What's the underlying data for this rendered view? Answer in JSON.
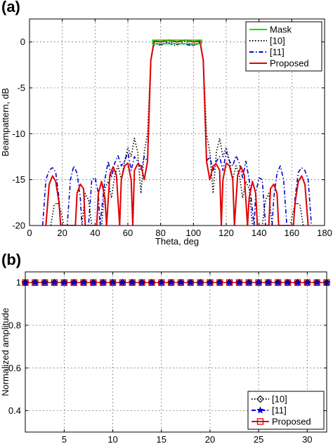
{
  "chart_data": [
    {
      "panel_label": "(a)",
      "type": "line",
      "xlabel": "Theta, deg",
      "ylabel": "Beampattern, dB",
      "xlim": [
        0,
        180
      ],
      "ylim": [
        -20,
        2.5
      ],
      "xticks": [
        0,
        20,
        40,
        60,
        80,
        100,
        120,
        140,
        160,
        180
      ],
      "yticks": [
        0,
        -5,
        -10,
        -15,
        -20
      ],
      "grid": true,
      "legend_position": "top-right",
      "series": [
        {
          "name": "Mask",
          "color": "#00e000",
          "style": "solid",
          "points": [
            [
              75,
              0.2
            ],
            [
              105,
              0.2
            ],
            [
              105,
              -0.2
            ],
            [
              75,
              -0.2
            ],
            [
              75,
              0.2
            ]
          ]
        },
        {
          "name": "[10]",
          "color": "#000000",
          "style": "dotted",
          "points": [
            [
              13,
              -20
            ],
            [
              15,
              -17.8
            ],
            [
              17,
              -17.5
            ],
            [
              19,
              -18.3
            ],
            [
              21,
              -20
            ],
            [
              32,
              -20
            ],
            [
              34,
              -16.5
            ],
            [
              36,
              -17.2
            ],
            [
              38,
              -20
            ],
            [
              44,
              -20
            ],
            [
              46,
              -16
            ],
            [
              48,
              -15.2
            ],
            [
              50,
              -17
            ],
            [
              52,
              -14.5
            ],
            [
              54,
              -13.5
            ],
            [
              56,
              -15
            ],
            [
              58,
              -13
            ],
            [
              60,
              -11.5
            ],
            [
              62,
              -12.5
            ],
            [
              64,
              -10.5
            ],
            [
              66,
              -12
            ],
            [
              68,
              -16.5
            ],
            [
              70,
              -12
            ],
            [
              72,
              -10
            ],
            [
              74,
              -2
            ],
            [
              76,
              0
            ],
            [
              80,
              -0.4
            ],
            [
              85,
              0.1
            ],
            [
              90,
              -0.3
            ],
            [
              95,
              0.1
            ],
            [
              100,
              -0.4
            ],
            [
              104,
              0
            ],
            [
              106,
              -2
            ],
            [
              108,
              -10
            ],
            [
              110,
              -12
            ],
            [
              112,
              -16.5
            ],
            [
              114,
              -12
            ],
            [
              116,
              -10.5
            ],
            [
              118,
              -12.5
            ],
            [
              120,
              -11.5
            ],
            [
              122,
              -13
            ],
            [
              124,
              -15
            ],
            [
              126,
              -13.5
            ],
            [
              128,
              -14.5
            ],
            [
              130,
              -17
            ],
            [
              132,
              -15.2
            ],
            [
              134,
              -16
            ],
            [
              136,
              -20
            ],
            [
              142,
              -20
            ],
            [
              144,
              -17.2
            ],
            [
              146,
              -16.5
            ],
            [
              148,
              -20
            ],
            [
              159,
              -20
            ],
            [
              161,
              -18.3
            ],
            [
              163,
              -17.5
            ],
            [
              165,
              -17.8
            ],
            [
              167,
              -20
            ]
          ]
        },
        {
          "name": "[11]",
          "color": "#0000cc",
          "style": "dashdot",
          "points": [
            [
              8,
              -20
            ],
            [
              10,
              -15
            ],
            [
              12,
              -14
            ],
            [
              14,
              -13.7
            ],
            [
              16,
              -14.2
            ],
            [
              18,
              -17
            ],
            [
              19,
              -20
            ],
            [
              23,
              -20
            ],
            [
              25,
              -15
            ],
            [
              27,
              -13.5
            ],
            [
              29,
              -14.3
            ],
            [
              31,
              -17
            ],
            [
              32,
              -20
            ],
            [
              36,
              -20
            ],
            [
              38,
              -15
            ],
            [
              40,
              -14.8
            ],
            [
              42,
              -16.5
            ],
            [
              43,
              -20
            ],
            [
              46,
              -15
            ],
            [
              48,
              -13
            ],
            [
              50,
              -14.8
            ],
            [
              52,
              -13.2
            ],
            [
              54,
              -12.4
            ],
            [
              56,
              -13.5
            ],
            [
              58,
              -13
            ],
            [
              60,
              -12
            ],
            [
              62,
              -14
            ],
            [
              64,
              -12.5
            ],
            [
              66,
              -13
            ],
            [
              68,
              -14
            ],
            [
              70,
              -12.5
            ],
            [
              72,
              -13
            ],
            [
              74,
              -2
            ],
            [
              76,
              -0.2
            ],
            [
              80,
              -0.3
            ],
            [
              84,
              0
            ],
            [
              88,
              -0.4
            ],
            [
              92,
              -0.2
            ],
            [
              96,
              -0.3
            ],
            [
              100,
              -0.4
            ],
            [
              104,
              -0.1
            ],
            [
              106,
              -2
            ],
            [
              108,
              -13
            ],
            [
              110,
              -12.5
            ],
            [
              112,
              -14
            ],
            [
              114,
              -13
            ],
            [
              116,
              -12.5
            ],
            [
              118,
              -14
            ],
            [
              120,
              -12
            ],
            [
              122,
              -13
            ],
            [
              124,
              -13.5
            ],
            [
              126,
              -12.4
            ],
            [
              128,
              -13.2
            ],
            [
              130,
              -14.8
            ],
            [
              132,
              -13
            ],
            [
              134,
              -15
            ],
            [
              137,
              -20
            ],
            [
              138,
              -16.5
            ],
            [
              140,
              -14.8
            ],
            [
              142,
              -15
            ],
            [
              144,
              -20
            ],
            [
              148,
              -20
            ],
            [
              149,
              -17
            ],
            [
              151,
              -14.3
            ],
            [
              153,
              -13.5
            ],
            [
              155,
              -15
            ],
            [
              157,
              -20
            ],
            [
              161,
              -20
            ],
            [
              162,
              -17
            ],
            [
              164,
              -14.2
            ],
            [
              166,
              -13.7
            ],
            [
              168,
              -14
            ],
            [
              170,
              -15
            ],
            [
              172,
              -20
            ]
          ]
        },
        {
          "name": "Proposed",
          "color": "#e00000",
          "style": "solid",
          "points": [
            [
              10,
              -20
            ],
            [
              12,
              -15.5
            ],
            [
              14,
              -14.6
            ],
            [
              16,
              -15.2
            ],
            [
              18,
              -17.5
            ],
            [
              19,
              -20
            ],
            [
              28,
              -20
            ],
            [
              29,
              -16.5
            ],
            [
              31,
              -15.5
            ],
            [
              33,
              -16
            ],
            [
              34,
              -20
            ],
            [
              41,
              -20
            ],
            [
              42,
              -16.5
            ],
            [
              44,
              -15.2
            ],
            [
              46,
              -17
            ],
            [
              47,
              -20
            ],
            [
              49,
              -14.5
            ],
            [
              51,
              -13.6
            ],
            [
              53,
              -14.5
            ],
            [
              55,
              -20
            ],
            [
              56,
              -15
            ],
            [
              58,
              -13.5
            ],
            [
              60,
              -13.2
            ],
            [
              62,
              -15
            ],
            [
              63,
              -20
            ],
            [
              64,
              -14
            ],
            [
              66,
              -13.3
            ],
            [
              68,
              -13.5
            ],
            [
              70,
              -15
            ],
            [
              72,
              -13
            ],
            [
              74,
              -2
            ],
            [
              76,
              0.1
            ],
            [
              80,
              0
            ],
            [
              85,
              0.2
            ],
            [
              90,
              0
            ],
            [
              95,
              0.2
            ],
            [
              100,
              0
            ],
            [
              104,
              0.1
            ],
            [
              106,
              -2
            ],
            [
              108,
              -13
            ],
            [
              110,
              -15
            ],
            [
              112,
              -13.5
            ],
            [
              114,
              -13.3
            ],
            [
              116,
              -14
            ],
            [
              117,
              -20
            ],
            [
              118,
              -15
            ],
            [
              120,
              -13.2
            ],
            [
              122,
              -13.5
            ],
            [
              124,
              -15
            ],
            [
              125,
              -20
            ],
            [
              127,
              -14.5
            ],
            [
              129,
              -13.6
            ],
            [
              131,
              -14.5
            ],
            [
              133,
              -20
            ],
            [
              134,
              -17
            ],
            [
              136,
              -15.2
            ],
            [
              138,
              -16.5
            ],
            [
              139,
              -20
            ],
            [
              146,
              -20
            ],
            [
              147,
              -16
            ],
            [
              149,
              -15.5
            ],
            [
              151,
              -16.5
            ],
            [
              152,
              -20
            ],
            [
              161,
              -20
            ],
            [
              162,
              -17.5
            ],
            [
              164,
              -15.2
            ],
            [
              166,
              -14.6
            ],
            [
              168,
              -15.5
            ],
            [
              170,
              -20
            ]
          ]
        }
      ]
    },
    {
      "panel_label": "(b)",
      "type": "line",
      "xlabel": "Antenna index",
      "ylabel": "Normalized amplitude",
      "xlim": [
        1,
        32
      ],
      "ylim": [
        0.3,
        1.05
      ],
      "xticks": [
        5,
        10,
        15,
        20,
        25,
        30
      ],
      "yticks": [
        0.4,
        0.6,
        0.8,
        1
      ],
      "grid": true,
      "legend_position": "bottom-right",
      "x": [
        1,
        2,
        3,
        4,
        5,
        6,
        7,
        8,
        9,
        10,
        11,
        12,
        13,
        14,
        15,
        16,
        17,
        18,
        19,
        20,
        21,
        22,
        23,
        24,
        25,
        26,
        27,
        28,
        29,
        30,
        31,
        32
      ],
      "series": [
        {
          "name": "[10]",
          "color": "#000000",
          "style": "dotted",
          "marker": "diamond",
          "values": [
            1,
            1,
            1,
            1,
            1,
            1,
            1,
            1,
            1,
            1,
            1,
            1,
            1,
            1,
            1,
            1,
            1,
            1,
            1,
            1,
            1,
            1,
            1,
            1,
            1,
            1,
            1,
            1,
            1,
            1,
            1,
            1
          ]
        },
        {
          "name": "[11]",
          "color": "#0000cc",
          "style": "dashdot",
          "marker": "star",
          "values": [
            1,
            1,
            1,
            1,
            1,
            1,
            1,
            1,
            1,
            1,
            1,
            1,
            1,
            1,
            1,
            1,
            1,
            1,
            1,
            1,
            1,
            1,
            1,
            1,
            1,
            1,
            1,
            1,
            1,
            1,
            1,
            1
          ]
        },
        {
          "name": "Proposed",
          "color": "#e00000",
          "style": "solid",
          "marker": "square",
          "values": [
            1,
            1,
            1,
            1,
            1,
            1,
            1,
            1,
            1,
            1,
            1,
            1,
            1,
            1,
            1,
            1,
            1,
            1,
            1,
            1,
            1,
            1,
            1,
            1,
            1,
            1,
            1,
            1,
            1,
            1,
            1,
            1
          ]
        }
      ]
    }
  ]
}
